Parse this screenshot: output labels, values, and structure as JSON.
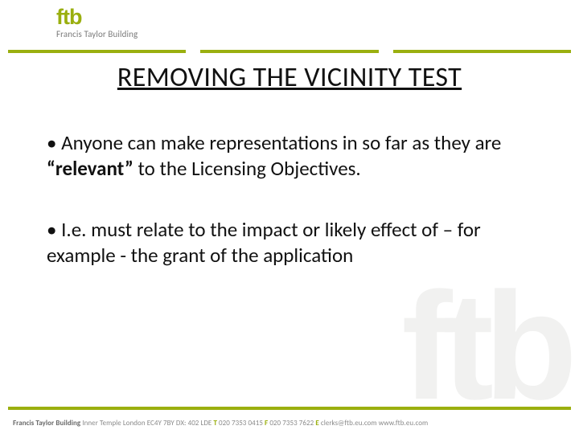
{
  "theme": {
    "accent": "#9aaf0f",
    "text": "#111111",
    "muted": "#7a7a7a",
    "watermark": "#f1f1f0",
    "background": "#ffffff"
  },
  "header": {
    "logo_text": "ftb",
    "logo_subtext": "Francis Taylor Building"
  },
  "title": "REMOVING THE VICINITY TEST",
  "bullets": {
    "b1_pre": "• Anyone can make representations in so far as they are ",
    "b1_bold": "“relevant”",
    "b1_post": " to the Licensing Objectives.",
    "b2": "• I.e. must relate to the impact or likely effect of – for example - the grant of the application"
  },
  "watermark": "ftb",
  "footer": {
    "name": "Francis Taylor Building",
    "address": " Inner Temple London EC4Y 7BY DX: 402 LDE ",
    "t_label": "T",
    "t_value": " 020 7353 0415 ",
    "f_label": "F",
    "f_value": " 020 7353 7622 ",
    "e_label": "E",
    "e_value": " clerks@ftb.eu.com ",
    "w_value": " www.ftb.eu.com"
  }
}
